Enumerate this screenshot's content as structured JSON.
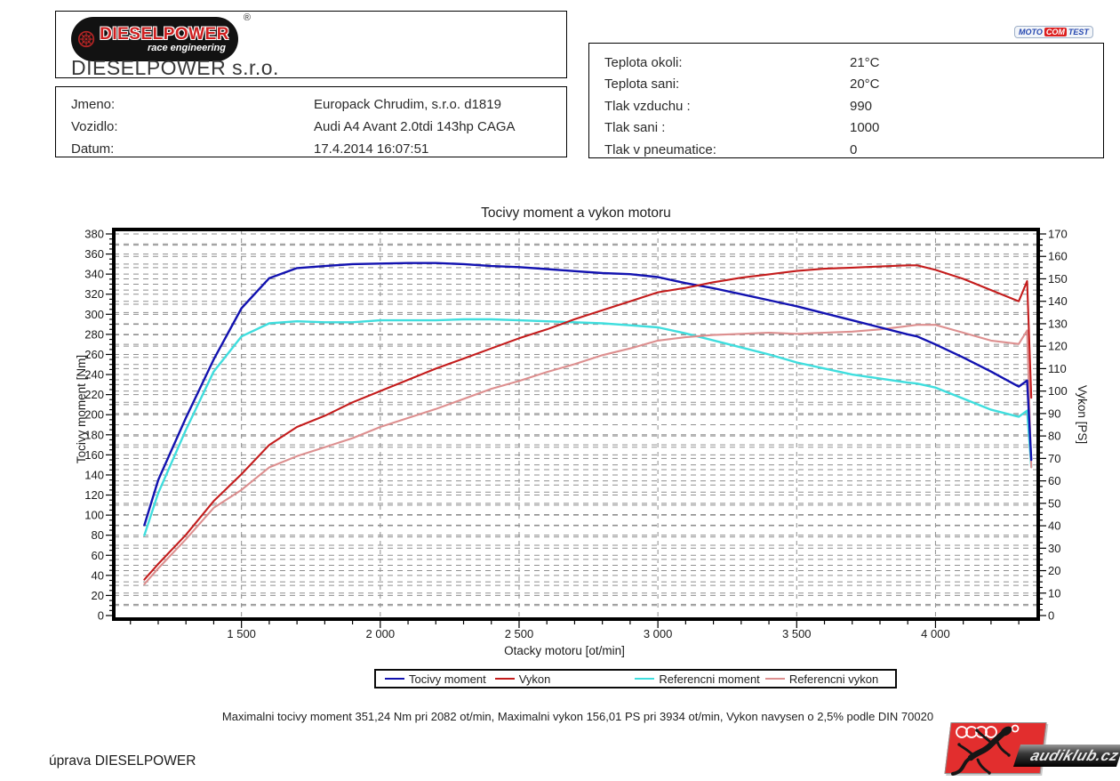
{
  "header": {
    "brand_logo": {
      "line1": "DIESELPOWER",
      "line2": "race engineering",
      "registered_mark": "®"
    },
    "company": "DIESELPOWER s.r.o.",
    "vehicle_info": {
      "rows": [
        {
          "label": "Jmeno:",
          "value": "Europack Chrudim, s.r.o. d1819"
        },
        {
          "label": "Vozidlo:",
          "value": "Audi A4 Avant 2.0tdi 143hp CAGA"
        },
        {
          "label": "Datum:",
          "value": "17.4.2014 16:07:51"
        }
      ]
    },
    "motocom_logo": {
      "part1": "MOTO",
      "part2": "COM",
      "part3": "TEST"
    },
    "conditions": {
      "rows": [
        {
          "label": "Teplota okoli:",
          "value": "21°C"
        },
        {
          "label": "Teplota sani:",
          "value": "20°C"
        },
        {
          "label": "Tlak vzduchu :",
          "value": "990"
        },
        {
          "label": "Tlak sani :",
          "value": "1000"
        },
        {
          "label": "Tlak v pneumatice:",
          "value": "0"
        }
      ]
    }
  },
  "chart_data": {
    "type": "line",
    "title": "Tocivy moment a vykon motoru",
    "xlabel": "Otacky motoru [ot/min]",
    "ylabel_left": "Tocivy moment [Nm]",
    "ylabel_right": "Vykon [PS]",
    "x_range": [
      1040,
      4370
    ],
    "y_left_range": [
      0,
      380
    ],
    "y_right_range": [
      0,
      170
    ],
    "x_ticks": [
      1500,
      2000,
      2500,
      3000,
      3500,
      4000
    ],
    "x_tick_labels": [
      "1 500",
      "2 000",
      "2 500",
      "3 000",
      "3 500",
      "4 000"
    ],
    "y_left_tick_step": 20,
    "y_right_tick_step": 10,
    "grid": "dashed",
    "legend_position": "bottom",
    "max_torque_nm": 351.24,
    "max_torque_rpm": 2082,
    "max_power_ps": 156.01,
    "max_power_rpm": 3934,
    "din_note": "Vykon navysen o 2,5% podle DIN 70020",
    "x": [
      1150,
      1200,
      1300,
      1400,
      1500,
      1600,
      1700,
      1800,
      1900,
      2000,
      2100,
      2200,
      2300,
      2400,
      2500,
      2600,
      2700,
      2800,
      2900,
      3000,
      3100,
      3200,
      3300,
      3400,
      3500,
      3600,
      3700,
      3800,
      3900,
      3934,
      4000,
      4100,
      4200,
      4300,
      4330,
      4345
    ],
    "series": [
      {
        "name": "Tocivy moment",
        "axis": "left",
        "unit": "Nm",
        "color": "#1212b0",
        "values": [
          90,
          135,
          197,
          255,
          306,
          336,
          346,
          348,
          350,
          350.5,
          351,
          351,
          350,
          348,
          347,
          345,
          343,
          341,
          340,
          337,
          331,
          326,
          320,
          314,
          308,
          301,
          294,
          287,
          280,
          278,
          270,
          257,
          243,
          228,
          234,
          155
        ]
      },
      {
        "name": "Vykon",
        "axis": "right",
        "unit": "PS",
        "color": "#c41c1c",
        "values": [
          16,
          23,
          36,
          51,
          63,
          76,
          84,
          89,
          95,
          100,
          105,
          110,
          114.5,
          119,
          123.5,
          127.5,
          132,
          136,
          140,
          144,
          146,
          148.5,
          150.5,
          152,
          153.5,
          154.5,
          155,
          155.5,
          156,
          156,
          154,
          150,
          145,
          140,
          149,
          97
        ]
      },
      {
        "name": "Referencni moment",
        "axis": "left",
        "unit": "Nm",
        "color": "#3fdede",
        "values": [
          80,
          122,
          185,
          243,
          278,
          291,
          293,
          292,
          292,
          294,
          294,
          294,
          295,
          295,
          294,
          293,
          292,
          291,
          289,
          287,
          281,
          274,
          267,
          260,
          252,
          246,
          240,
          236,
          232,
          231,
          227,
          216,
          205,
          198,
          204,
          148
        ]
      },
      {
        "name": "Referencni vykon",
        "axis": "right",
        "unit": "PS",
        "color": "#dd8f8f",
        "values": [
          14,
          21,
          34,
          48,
          56,
          66,
          71,
          75,
          79,
          84,
          88,
          92,
          96.5,
          101,
          104.5,
          108.5,
          112,
          116,
          119,
          122.5,
          124,
          125,
          125.5,
          126,
          125.5,
          126,
          126.5,
          127.5,
          129,
          129.5,
          129.5,
          126,
          122.5,
          121,
          127,
          66
        ]
      }
    ]
  },
  "summary": "Maximalni tocivy moment 351,24 Nm pri 2082 ot/min,  Maximalni vykon 156,01 PS pri 3934 ot/min,  Vykon navysen o 2,5% podle DIN 70020",
  "footer": {
    "note": "úprava DIESELPOWER",
    "audiklub_text": "audiklub.cz"
  }
}
